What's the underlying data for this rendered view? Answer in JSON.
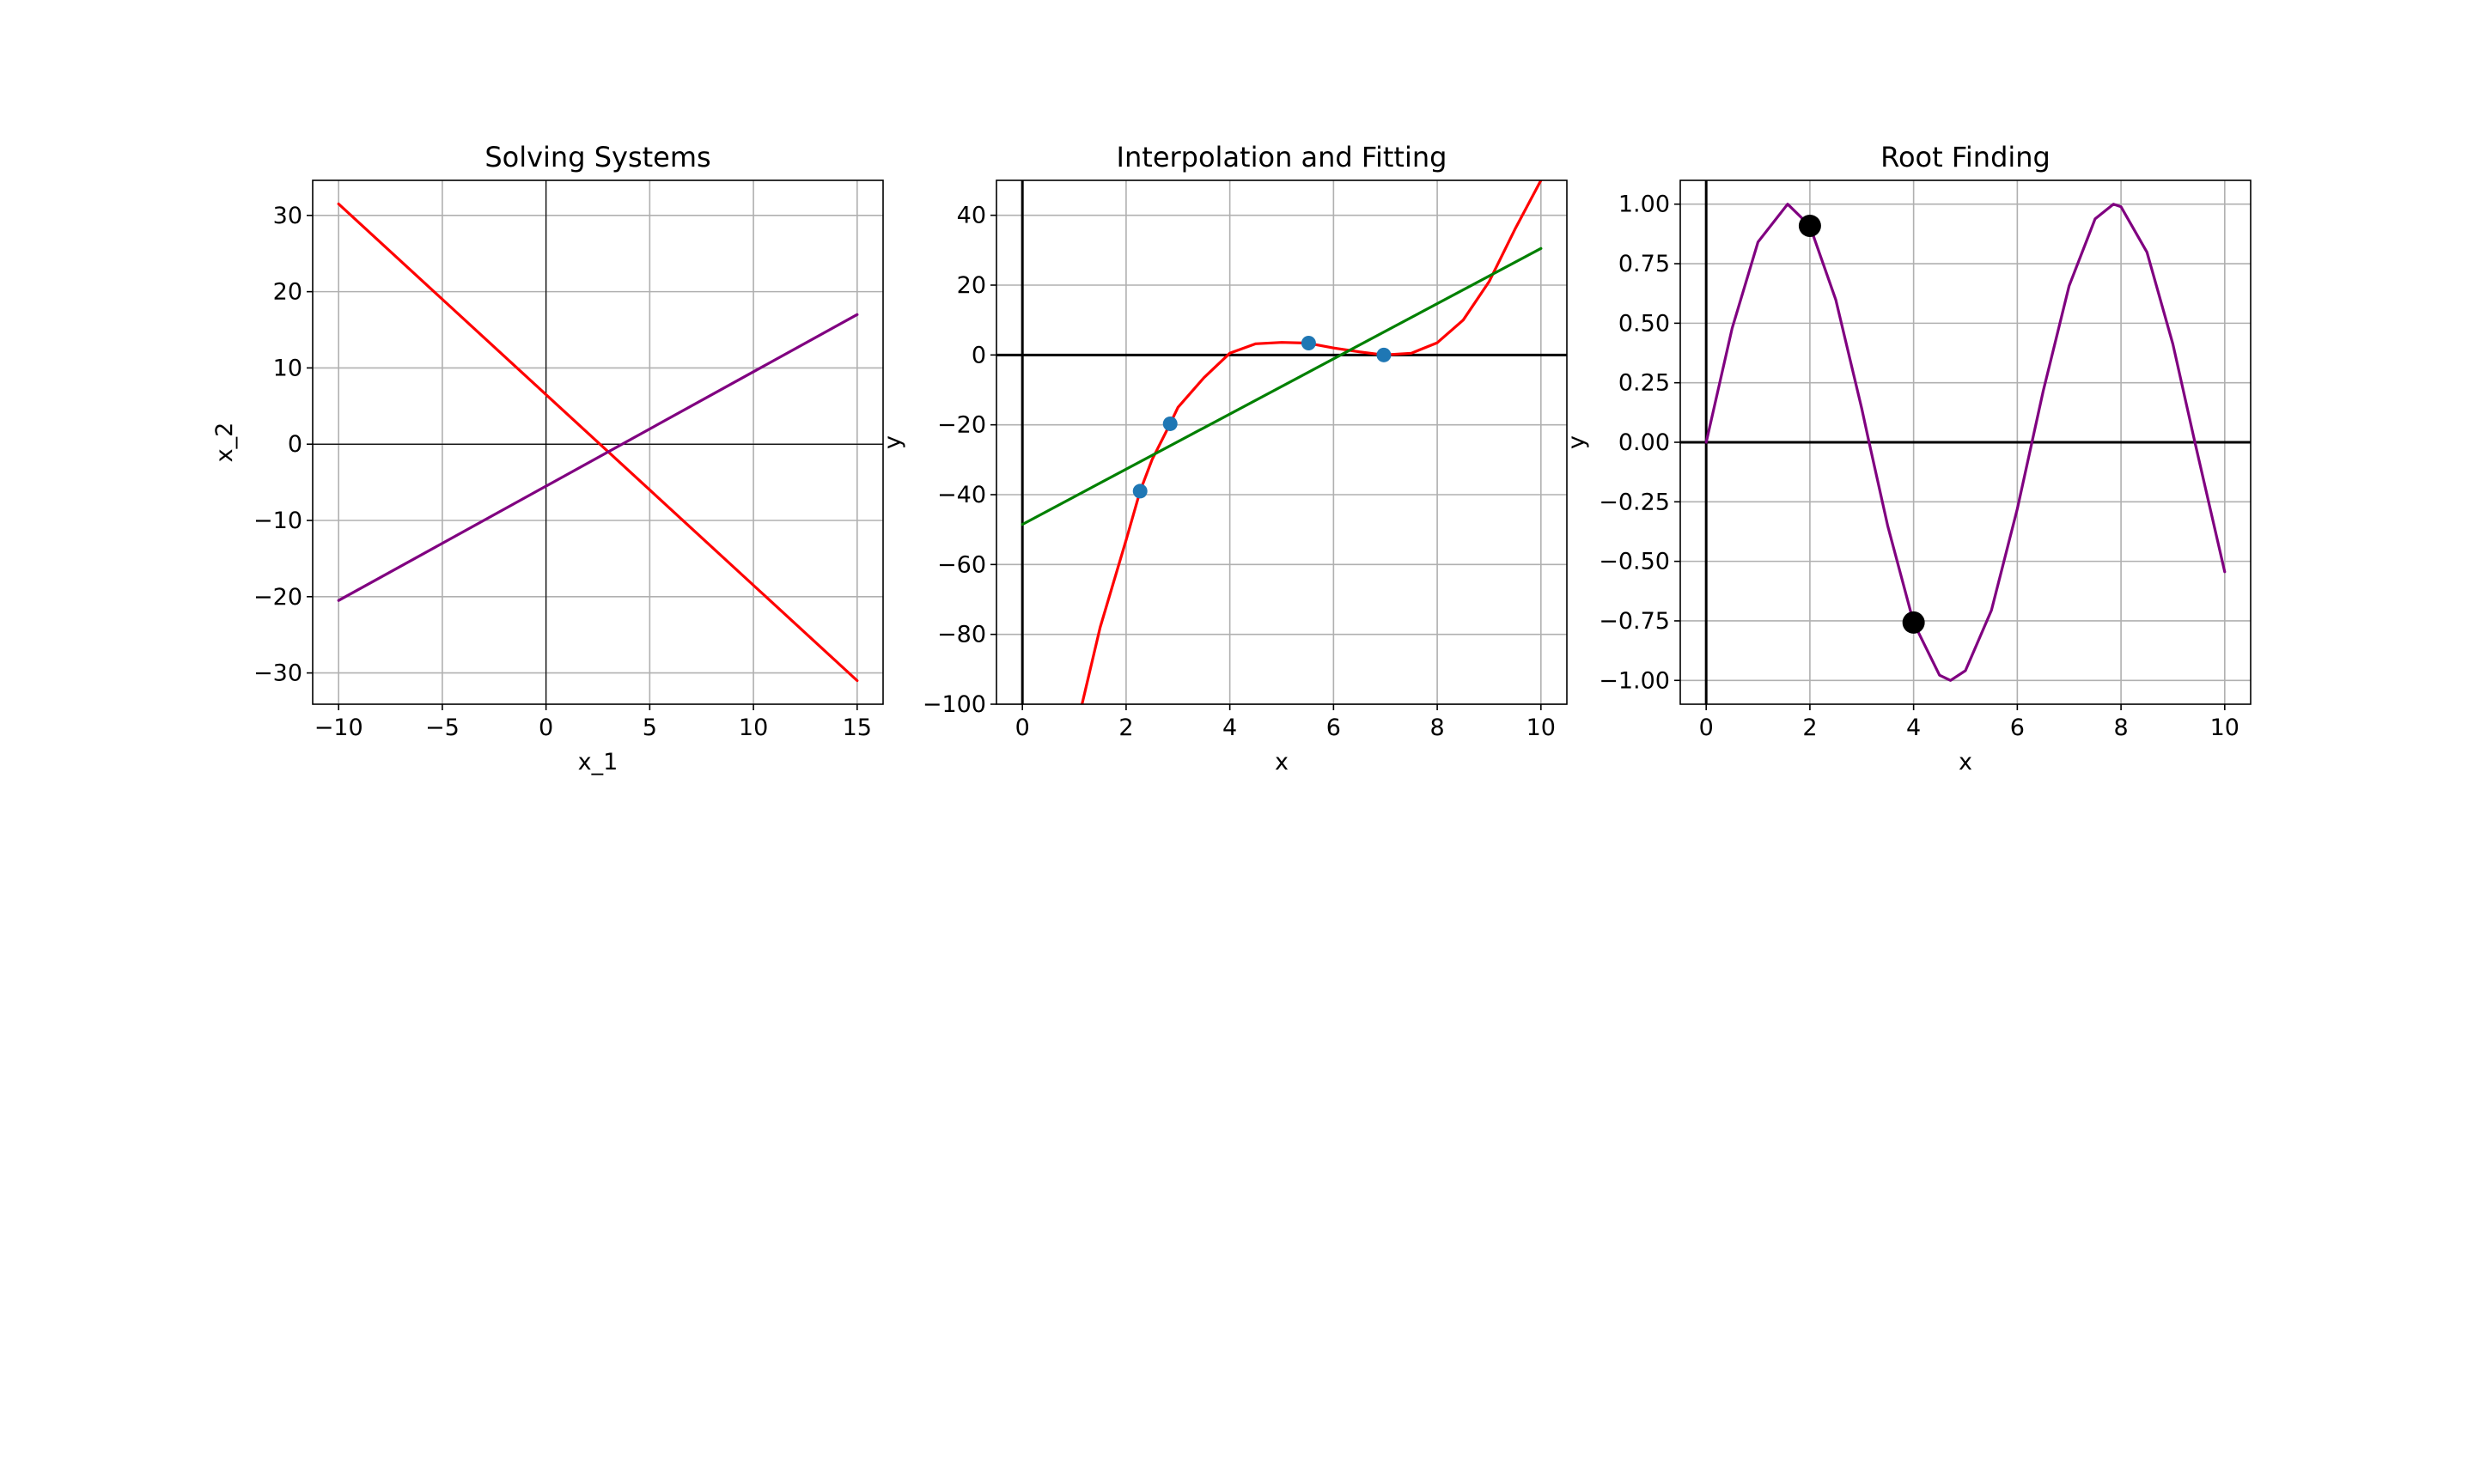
{
  "chart_data": [
    {
      "type": "line",
      "title": "Solving Systems",
      "xlabel": "x_1",
      "ylabel": "x_2",
      "xlim": [
        -11.25,
        16.25
      ],
      "ylim": [
        -34.1,
        34.6
      ],
      "xticks": [
        -10,
        -5,
        0,
        5,
        10,
        15
      ],
      "yticks": [
        -30,
        -20,
        -10,
        0,
        10,
        20,
        30
      ],
      "xtick_labels": [
        "−10",
        "−5",
        "0",
        "5",
        "10",
        "15"
      ],
      "ytick_labels": [
        "−30",
        "−20",
        "−10",
        "0",
        "10",
        "20",
        "30"
      ],
      "grid": true,
      "axhline": 0,
      "axvline": 0,
      "axis_line_color": "#000000",
      "series": [
        {
          "x": [
            -10,
            15
          ],
          "y": [
            31.5,
            -31.0
          ],
          "color": "#ff0000"
        },
        {
          "x": [
            -10,
            15
          ],
          "y": [
            -20.5,
            17.0
          ],
          "color": "#800080"
        }
      ],
      "points": []
    },
    {
      "type": "line",
      "title": "Interpolation and Fitting",
      "xlabel": "x",
      "ylabel": "y",
      "xlim": [
        -0.5,
        10.5
      ],
      "ylim": [
        -100,
        50
      ],
      "xticks": [
        0,
        2,
        4,
        6,
        8,
        10
      ],
      "yticks": [
        -100,
        -80,
        -60,
        -40,
        -20,
        0,
        20,
        40
      ],
      "xtick_labels": [
        "0",
        "2",
        "4",
        "6",
        "8",
        "10"
      ],
      "ytick_labels": [
        "−100",
        "−80",
        "−60",
        "−40",
        "−20",
        "0",
        "20",
        "40"
      ],
      "grid": true,
      "axhline": 0,
      "axvline": 0,
      "axis_line_color": "#000000",
      "series": [
        {
          "x": [
            1.15,
            1.5,
            2.0,
            2.27,
            2.5,
            2.85,
            3.0,
            3.5,
            4.0,
            4.5,
            5.0,
            5.5,
            6.0,
            6.5,
            6.97,
            7.5,
            8.0,
            8.5,
            9.0,
            9.5,
            10.0
          ],
          "y": [
            -100.0,
            -78.0,
            -53.0,
            -39.0,
            -30.0,
            -19.7,
            -15.0,
            -6.5,
            0.5,
            3.2,
            3.6,
            3.4,
            2.0,
            0.9,
            0.0,
            0.5,
            3.5,
            10.0,
            21.0,
            36.0,
            50.0
          ],
          "color": "#ff0000"
        },
        {
          "x": [
            0,
            10
          ],
          "y": [
            -48.5,
            30.5
          ],
          "color": "#008000"
        }
      ],
      "points": [
        {
          "x": 2.27,
          "y": -39.0,
          "color": "#1f77b4",
          "size": "small"
        },
        {
          "x": 2.85,
          "y": -19.7,
          "color": "#1f77b4",
          "size": "small"
        },
        {
          "x": 5.52,
          "y": 3.4,
          "color": "#1f77b4",
          "size": "small"
        },
        {
          "x": 6.97,
          "y": 0.0,
          "color": "#1f77b4",
          "size": "small"
        }
      ]
    },
    {
      "type": "line",
      "title": "Root Finding",
      "xlabel": "x",
      "ylabel": "y",
      "xlim": [
        -0.5,
        10.5
      ],
      "ylim": [
        -1.1,
        1.1
      ],
      "xticks": [
        0,
        2,
        4,
        6,
        8,
        10
      ],
      "yticks": [
        -1.0,
        -0.75,
        -0.5,
        -0.25,
        0.0,
        0.25,
        0.5,
        0.75,
        1.0
      ],
      "xtick_labels": [
        "0",
        "2",
        "4",
        "6",
        "8",
        "10"
      ],
      "ytick_labels": [
        "−1.00",
        "−0.75",
        "−0.50",
        "−0.25",
        "0.00",
        "0.25",
        "0.50",
        "0.75",
        "1.00"
      ],
      "grid": true,
      "axhline": 0,
      "axvline": 0,
      "axis_line_color": "#000000",
      "series": [
        {
          "x": [
            0.0,
            0.5,
            1.0,
            1.571,
            2.0,
            2.5,
            3.0,
            3.142,
            3.5,
            4.0,
            4.5,
            4.712,
            5.0,
            5.5,
            6.0,
            6.283,
            6.5,
            7.0,
            7.5,
            7.854,
            8.0,
            8.5,
            9.0,
            9.425,
            10.0
          ],
          "y": [
            0.0,
            0.479,
            0.841,
            1.0,
            0.909,
            0.598,
            0.141,
            0.0,
            -0.351,
            -0.757,
            -0.978,
            -1.0,
            -0.959,
            -0.706,
            -0.279,
            0.0,
            0.215,
            0.657,
            0.938,
            1.0,
            0.989,
            0.798,
            0.412,
            0.0,
            -0.544
          ],
          "color": "#800080"
        }
      ],
      "points": [
        {
          "x": 2.0,
          "y": 0.909,
          "color": "#000000",
          "size": "large"
        },
        {
          "x": 4.0,
          "y": -0.757,
          "color": "#000000",
          "size": "large"
        }
      ]
    }
  ]
}
